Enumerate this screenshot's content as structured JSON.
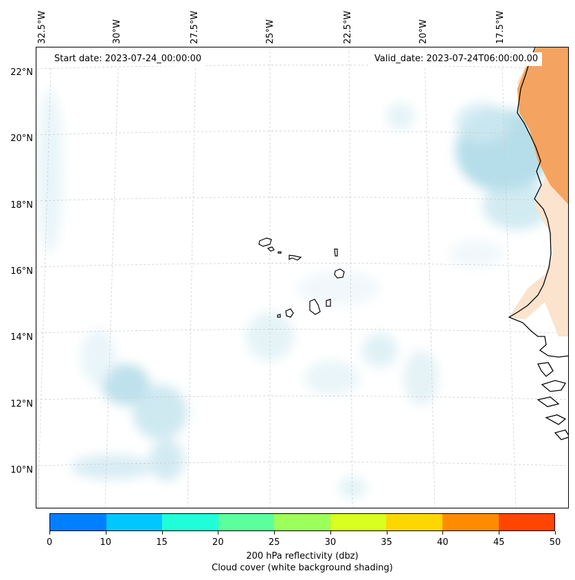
{
  "map": {
    "start_date": "Start date: 2023-07-24_00:00:00",
    "valid_date": "Valid_date: 2023-07-24T06:00:00.00",
    "longitude_labels": [
      "32.5°W",
      "30°W",
      "27.5°W",
      "25°W",
      "22.5°W",
      "20°W",
      "17.5°W"
    ],
    "latitude_labels": [
      "22°N",
      "20°N",
      "18°N",
      "16°N",
      "14°N",
      "12°N",
      "10°N"
    ],
    "coastline_color": "#000000",
    "gridline_color": "#cccccc"
  },
  "colorbar": {
    "ticks": [
      "0",
      "10",
      "15",
      "20",
      "25",
      "30",
      "35",
      "40",
      "45",
      "50"
    ],
    "colors": [
      "#0080ff",
      "#00c8ff",
      "#1effd9",
      "#5cff9b",
      "#9bff5c",
      "#d9ff1e",
      "#ffd700",
      "#ff8c00",
      "#ff4500"
    ],
    "title_line1": "200 hPa reflectivity (dbz)",
    "title_line2": "Cloud cover (white background shading)"
  }
}
